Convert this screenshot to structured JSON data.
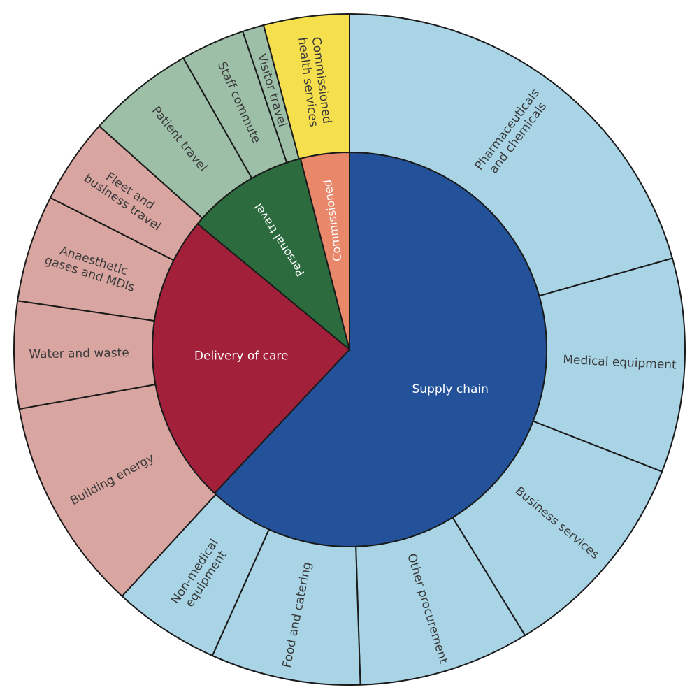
{
  "chart_data": {
    "type": "sunburst",
    "inner": [
      {
        "label": "Supply chain",
        "value": 62,
        "color": "#23529b",
        "text_color": "#ffffff"
      },
      {
        "label": "Delivery of care",
        "value": 24,
        "color": "#a3203a",
        "text_color": "#ffffff"
      },
      {
        "label": "Personal travel",
        "value": 10,
        "color": "#2b6b3e",
        "text_color": "#ffffff"
      },
      {
        "label": "Commissioned",
        "value": 4,
        "color": "#e8876a",
        "text_color": "#ffffff"
      }
    ],
    "outer": [
      {
        "label": "Pharmaceuticals and chemicals",
        "lines": [
          "Pharmaceuticals",
          "and chemicals"
        ],
        "parent": "Supply chain",
        "value": 20
      },
      {
        "label": "Medical equipment",
        "lines": [
          "Medical equipment"
        ],
        "parent": "Supply chain",
        "value": 10
      },
      {
        "label": "Business services",
        "lines": [
          "Business services"
        ],
        "parent": "Supply chain",
        "value": 10
      },
      {
        "label": "Other procurement",
        "lines": [
          "Other procurement"
        ],
        "parent": "Supply chain",
        "value": 8
      },
      {
        "label": "Food and catering",
        "lines": [
          "Food and catering"
        ],
        "parent": "Supply chain",
        "value": 7
      },
      {
        "label": "Non-medical equipment",
        "lines": [
          "Non-medical",
          "equipment"
        ],
        "parent": "Supply chain",
        "value": 5
      },
      {
        "label": "Building energy",
        "lines": [
          "Building energy"
        ],
        "parent": "Delivery of care",
        "value": 10
      },
      {
        "label": "Water and waste",
        "lines": [
          "Water and waste"
        ],
        "parent": "Delivery of care",
        "value": 5
      },
      {
        "label": "Anaesthetic gases and MDIs",
        "lines": [
          "Anaesthetic",
          "gases and MDIs"
        ],
        "parent": "Delivery of care",
        "value": 5
      },
      {
        "label": "Fleet and business travel",
        "lines": [
          "Fleet and",
          "business travel"
        ],
        "parent": "Delivery of care",
        "value": 4
      },
      {
        "label": "Patient travel",
        "lines": [
          "Patient travel"
        ],
        "parent": "Personal travel",
        "value": 5
      },
      {
        "label": "Staff commute",
        "lines": [
          "Staff commute"
        ],
        "parent": "Personal travel",
        "value": 3
      },
      {
        "label": "Visitor travel",
        "lines": [
          "Visitor travel"
        ],
        "parent": "Personal travel",
        "value": 1
      },
      {
        "label": "Commissioned health services",
        "lines": [
          "Commissioned",
          "health services"
        ],
        "parent": "Commissioned",
        "value": 4
      }
    ],
    "outer_colors": {
      "Supply chain": "#a8d4e6",
      "Delivery of care": "#d9a5a0",
      "Personal travel": "#9dbfa8",
      "Commissioned": "#f5df4d"
    },
    "outer_text_color": "#3a3a3a",
    "line_color": "#1a1a1a"
  }
}
